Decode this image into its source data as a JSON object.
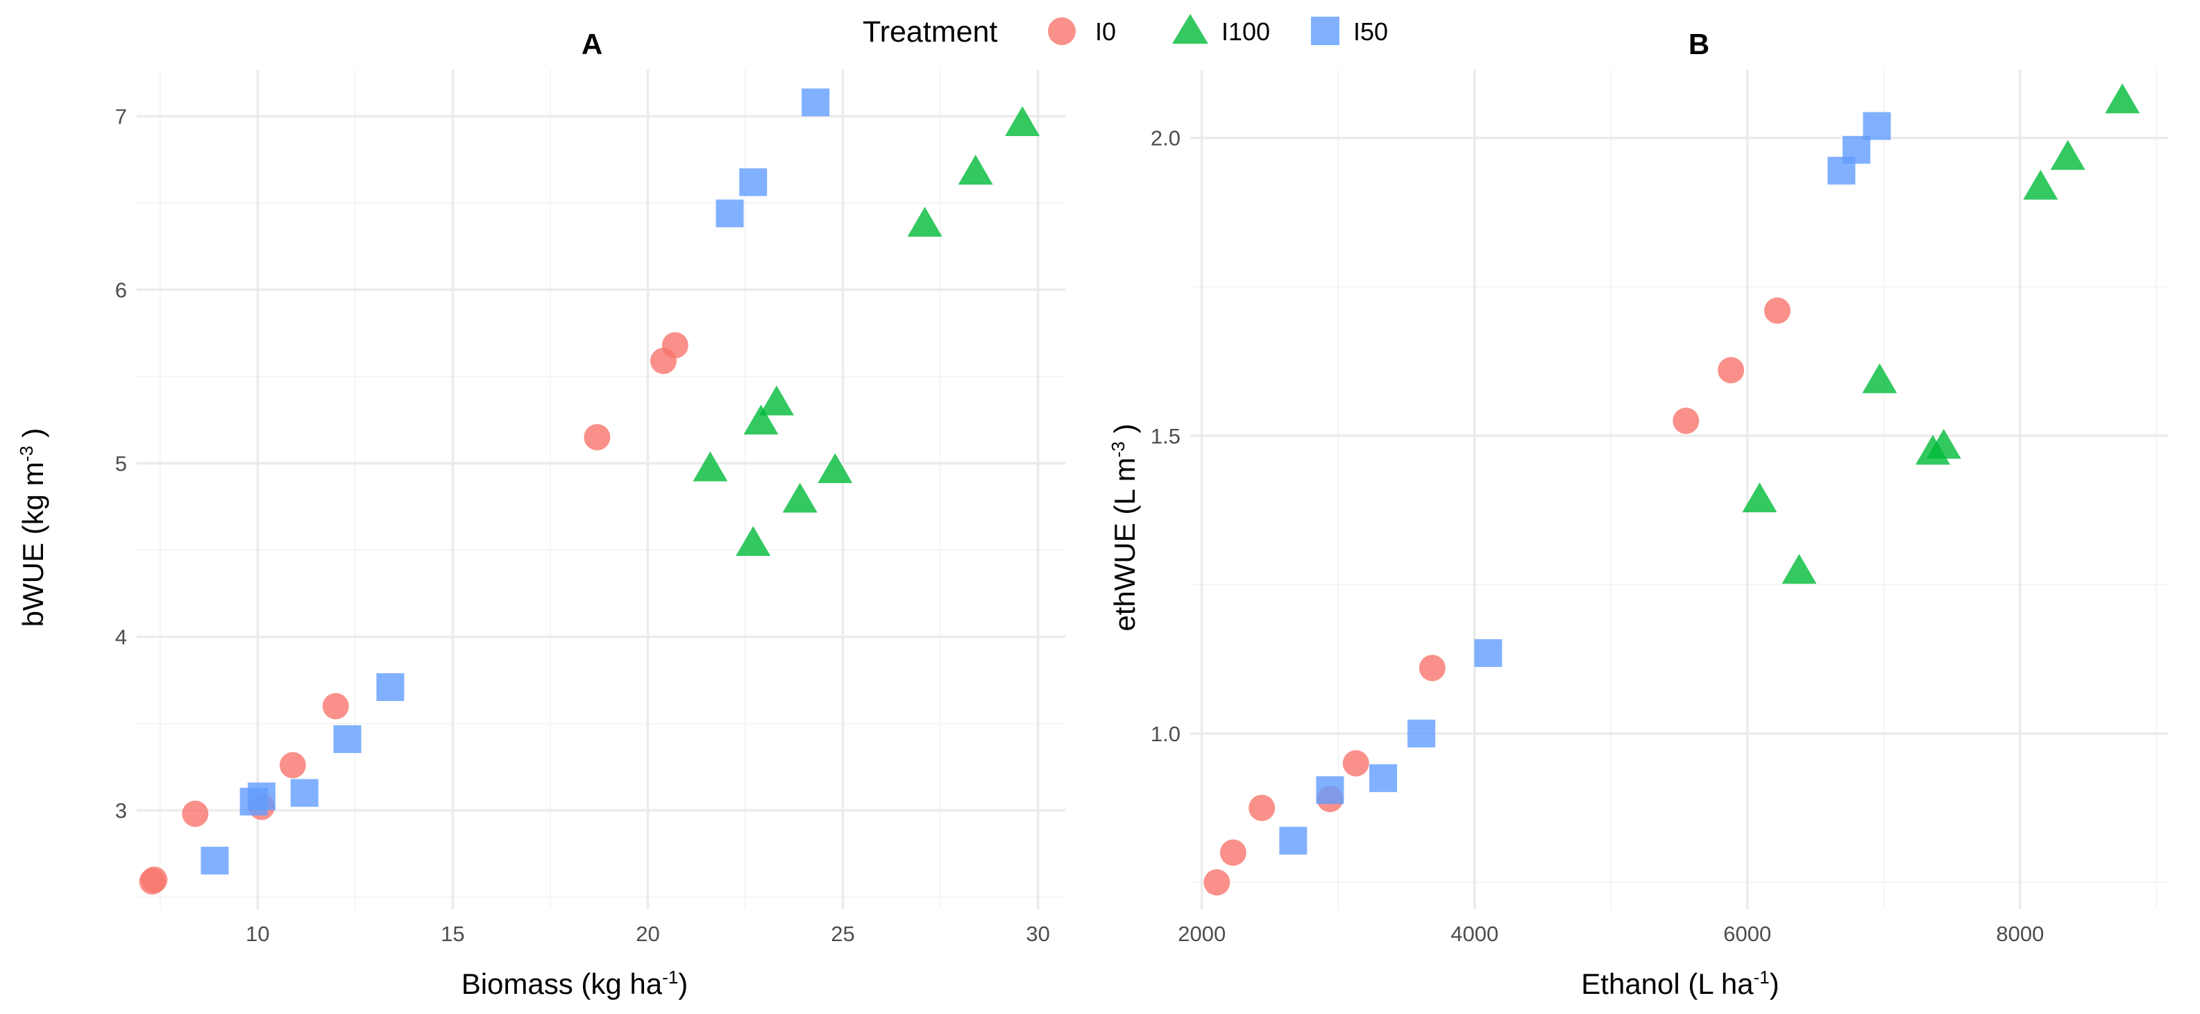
{
  "legend": {
    "title": "Treatment",
    "items": [
      {
        "label": "I0",
        "shape": "circle",
        "color": "#F8766D"
      },
      {
        "label": "I100",
        "shape": "triangle",
        "color": "#00BA38"
      },
      {
        "label": "I50",
        "shape": "square",
        "color": "#619CFF"
      }
    ]
  },
  "chart_data": [
    {
      "type": "scatter",
      "title": "A",
      "xlabel": "Biomass (kg ha",
      "xlabel_sup": "-1",
      "xlabel_end": ")",
      "ylabel": "bWUE (kg m",
      "ylabel_sup": "-3",
      "ylabel_end": " )",
      "xlim": [
        6.9,
        30.7
      ],
      "ylim": [
        2.43,
        7.27
      ],
      "xticks": [
        10,
        15,
        20,
        25,
        30
      ],
      "xtick_labels": [
        "10",
        "15",
        "20",
        "25",
        "30"
      ],
      "yticks": [
        3,
        4,
        5,
        6,
        7
      ],
      "ytick_labels": [
        "3",
        "4",
        "5",
        "6",
        "7"
      ],
      "grid": true,
      "series": [
        {
          "name": "I0",
          "points": [
            [
              7.3,
              2.59
            ],
            [
              7.35,
              2.6
            ],
            [
              8.4,
              2.98
            ],
            [
              10.1,
              3.02
            ],
            [
              10.9,
              3.26
            ],
            [
              12.0,
              3.6
            ],
            [
              18.7,
              5.15
            ],
            [
              20.4,
              5.59
            ],
            [
              20.7,
              5.68
            ]
          ]
        },
        {
          "name": "I100",
          "points": [
            [
              21.6,
              4.96
            ],
            [
              22.7,
              4.53
            ],
            [
              22.9,
              5.23
            ],
            [
              23.3,
              5.34
            ],
            [
              23.9,
              4.78
            ],
            [
              24.8,
              4.95
            ],
            [
              27.1,
              6.37
            ],
            [
              28.4,
              6.67
            ],
            [
              29.6,
              6.95
            ]
          ]
        },
        {
          "name": "I50",
          "points": [
            [
              8.9,
              2.71
            ],
            [
              9.9,
              3.05
            ],
            [
              10.1,
              3.08
            ],
            [
              11.2,
              3.1
            ],
            [
              12.3,
              3.41
            ],
            [
              13.4,
              3.71
            ],
            [
              22.1,
              6.44
            ],
            [
              22.7,
              6.62
            ],
            [
              24.3,
              7.08
            ]
          ]
        }
      ]
    },
    {
      "type": "scatter",
      "title": "B",
      "xlabel": "Ethanol (L ha",
      "xlabel_sup": "-1",
      "xlabel_end": ")",
      "ylabel": "ethWUE (L m",
      "ylabel_sup": "-3",
      "ylabel_end": " )",
      "xlim": [
        1915,
        9085
      ],
      "ylim": [
        0.705,
        2.115
      ],
      "xticks": [
        2000,
        4000,
        6000,
        8000
      ],
      "xtick_labels": [
        "2000",
        "4000",
        "6000",
        "8000"
      ],
      "yticks": [
        1.0,
        1.5,
        2.0
      ],
      "ytick_labels": [
        "1.0",
        "1.5",
        "2.0"
      ],
      "grid": true,
      "series": [
        {
          "name": "I0",
          "points": [
            [
              2110,
              0.75
            ],
            [
              2230,
              0.8
            ],
            [
              2440,
              0.875
            ],
            [
              2940,
              0.89
            ],
            [
              3130,
              0.95
            ],
            [
              3690,
              1.11
            ],
            [
              5550,
              1.525
            ],
            [
              5880,
              1.61
            ],
            [
              6220,
              1.71
            ]
          ]
        },
        {
          "name": "I100",
          "points": [
            [
              6090,
              1.39
            ],
            [
              6380,
              1.27
            ],
            [
              6970,
              1.59
            ],
            [
              7360,
              1.47
            ],
            [
              7440,
              1.48
            ],
            [
              8150,
              1.915
            ],
            [
              8350,
              1.965
            ],
            [
              8750,
              2.06
            ]
          ]
        },
        {
          "name": "I50",
          "points": [
            [
              2670,
              0.82
            ],
            [
              2940,
              0.905
            ],
            [
              3330,
              0.925
            ],
            [
              3610,
              1.0
            ],
            [
              4100,
              1.135
            ],
            [
              6690,
              1.945
            ],
            [
              6800,
              1.98
            ],
            [
              6950,
              2.02
            ]
          ]
        }
      ]
    }
  ]
}
